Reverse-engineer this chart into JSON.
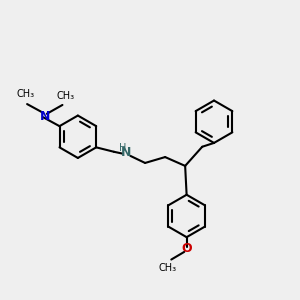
{
  "bg_color": "#efefef",
  "bond_color": "#000000",
  "N_amine_color": "#0000cc",
  "N_nh_color": "#336666",
  "O_color": "#cc0000",
  "lw": 1.5,
  "figsize": [
    3.0,
    3.0
  ],
  "dpi": 100,
  "xlim": [
    0,
    10
  ],
  "ylim": [
    0,
    10
  ],
  "ring_r": 0.72,
  "label_fontsize": 8.5
}
